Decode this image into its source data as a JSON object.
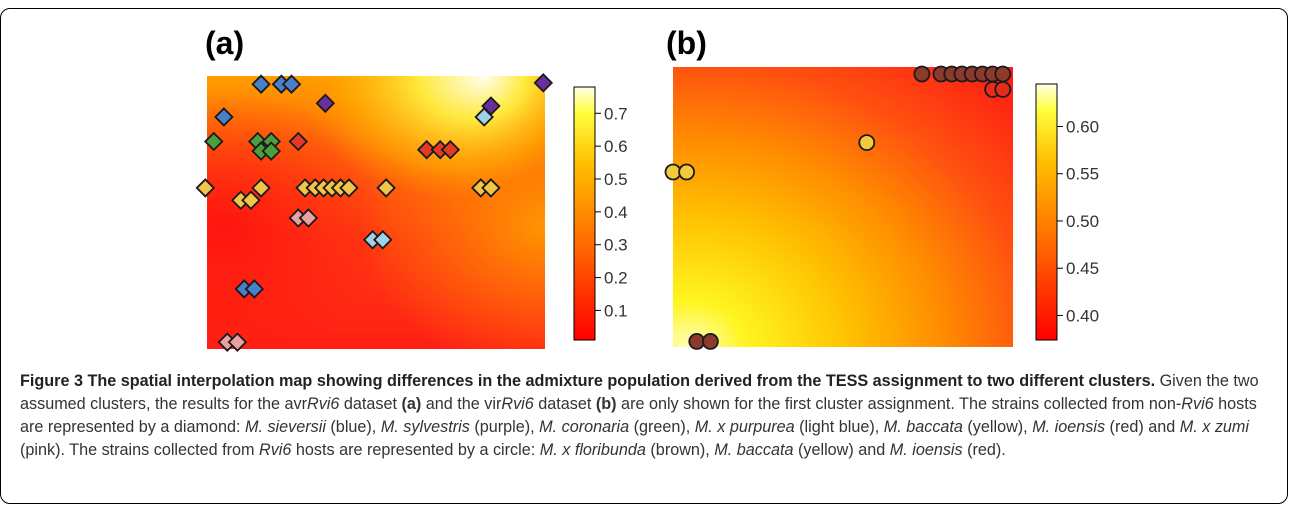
{
  "figure": {
    "panels": [
      {
        "label": "(a)",
        "colorbar": {
          "ticks": [
            "0.7",
            "0.6",
            "0.5",
            "0.4",
            "0.3",
            "0.2",
            "0.1"
          ],
          "min": 0.01,
          "max": 0.78
        },
        "markers": [
          {
            "shape": "diamond",
            "color": "#4a7fc9",
            "x": 0.16,
            "y": 0.03
          },
          {
            "shape": "diamond",
            "color": "#4a7fc9",
            "x": 0.22,
            "y": 0.03
          },
          {
            "shape": "diamond",
            "color": "#4a7fc9",
            "x": 0.25,
            "y": 0.03
          },
          {
            "shape": "diamond",
            "color": "#6a2f9c",
            "x": 0.995,
            "y": 0.025
          },
          {
            "shape": "diamond",
            "color": "#6a2f9c",
            "x": 0.35,
            "y": 0.1
          },
          {
            "shape": "diamond",
            "color": "#6a2f9c",
            "x": 0.84,
            "y": 0.11
          },
          {
            "shape": "diamond",
            "color": "#9ed2e8",
            "x": 0.82,
            "y": 0.15
          },
          {
            "shape": "diamond",
            "color": "#4a7fc9",
            "x": 0.05,
            "y": 0.15
          },
          {
            "shape": "diamond",
            "color": "#4aa03c",
            "x": 0.02,
            "y": 0.24
          },
          {
            "shape": "diamond",
            "color": "#4aa03c",
            "x": 0.15,
            "y": 0.24
          },
          {
            "shape": "diamond",
            "color": "#4aa03c",
            "x": 0.19,
            "y": 0.24
          },
          {
            "shape": "diamond",
            "color": "#4aa03c",
            "x": 0.16,
            "y": 0.275
          },
          {
            "shape": "diamond",
            "color": "#4aa03c",
            "x": 0.19,
            "y": 0.275
          },
          {
            "shape": "diamond",
            "color": "#e23a24",
            "x": 0.27,
            "y": 0.24
          },
          {
            "shape": "diamond",
            "color": "#e23a24",
            "x": 0.65,
            "y": 0.27
          },
          {
            "shape": "diamond",
            "color": "#e23a24",
            "x": 0.69,
            "y": 0.27
          },
          {
            "shape": "diamond",
            "color": "#e23a24",
            "x": 0.72,
            "y": 0.27
          },
          {
            "shape": "diamond",
            "color": "#f2c447",
            "x": -0.005,
            "y": 0.41
          },
          {
            "shape": "diamond",
            "color": "#f2c447",
            "x": 0.16,
            "y": 0.41
          },
          {
            "shape": "diamond",
            "color": "#f2c447",
            "x": 0.29,
            "y": 0.41
          },
          {
            "shape": "diamond",
            "color": "#f2c447",
            "x": 0.32,
            "y": 0.41
          },
          {
            "shape": "diamond",
            "color": "#f2c447",
            "x": 0.345,
            "y": 0.41
          },
          {
            "shape": "diamond",
            "color": "#f2c447",
            "x": 0.37,
            "y": 0.41
          },
          {
            "shape": "diamond",
            "color": "#f2c447",
            "x": 0.395,
            "y": 0.41
          },
          {
            "shape": "diamond",
            "color": "#f2c447",
            "x": 0.42,
            "y": 0.41
          },
          {
            "shape": "diamond",
            "color": "#f2c447",
            "x": 0.53,
            "y": 0.41
          },
          {
            "shape": "diamond",
            "color": "#f2c447",
            "x": 0.81,
            "y": 0.41
          },
          {
            "shape": "diamond",
            "color": "#f2c447",
            "x": 0.84,
            "y": 0.41
          },
          {
            "shape": "diamond",
            "color": "#f2c447",
            "x": 0.1,
            "y": 0.455
          },
          {
            "shape": "diamond",
            "color": "#f2c447",
            "x": 0.13,
            "y": 0.455
          },
          {
            "shape": "diamond",
            "color": "#e8a0a0",
            "x": 0.27,
            "y": 0.52
          },
          {
            "shape": "diamond",
            "color": "#e8a0a0",
            "x": 0.3,
            "y": 0.52
          },
          {
            "shape": "diamond",
            "color": "#9ed2e8",
            "x": 0.49,
            "y": 0.6
          },
          {
            "shape": "diamond",
            "color": "#9ed2e8",
            "x": 0.52,
            "y": 0.6
          },
          {
            "shape": "diamond",
            "color": "#4a7fc9",
            "x": 0.11,
            "y": 0.78
          },
          {
            "shape": "diamond",
            "color": "#4a7fc9",
            "x": 0.14,
            "y": 0.78
          },
          {
            "shape": "diamond",
            "color": "#e8a0a0",
            "x": 0.06,
            "y": 0.975
          },
          {
            "shape": "diamond",
            "color": "#e8a0a0",
            "x": 0.09,
            "y": 0.975
          }
        ]
      },
      {
        "label": "(b)",
        "colorbar": {
          "ticks": [
            "0.60",
            "0.55",
            "0.50",
            "0.45",
            "0.40"
          ],
          "min": 0.374,
          "max": 0.645
        },
        "markers": [
          {
            "shape": "circle",
            "color": "#8c3a2c",
            "x": 0.732,
            "y": 0.025
          },
          {
            "shape": "circle",
            "color": "#8c3a2c",
            "x": 0.788,
            "y": 0.025
          },
          {
            "shape": "circle",
            "color": "#8c3a2c",
            "x": 0.82,
            "y": 0.025
          },
          {
            "shape": "circle",
            "color": "#8c3a2c",
            "x": 0.85,
            "y": 0.025
          },
          {
            "shape": "circle",
            "color": "#8c3a2c",
            "x": 0.88,
            "y": 0.025
          },
          {
            "shape": "circle",
            "color": "#8c3a2c",
            "x": 0.91,
            "y": 0.025
          },
          {
            "shape": "circle",
            "color": "#8c3a2c",
            "x": 0.94,
            "y": 0.025
          },
          {
            "shape": "circle",
            "color": "#8c3a2c",
            "x": 0.97,
            "y": 0.025
          },
          {
            "shape": "circle",
            "color": "#e82a1c",
            "x": 0.94,
            "y": 0.08
          },
          {
            "shape": "circle",
            "color": "#e82a1c",
            "x": 0.97,
            "y": 0.08
          },
          {
            "shape": "circle",
            "color": "#f5c93c",
            "x": 0.57,
            "y": 0.27
          },
          {
            "shape": "circle",
            "color": "#f5c93c",
            "x": 0.0,
            "y": 0.375
          },
          {
            "shape": "circle",
            "color": "#f5c93c",
            "x": 0.04,
            "y": 0.375
          },
          {
            "shape": "circle",
            "color": "#8c3a2c",
            "x": 0.07,
            "y": 0.98
          },
          {
            "shape": "circle",
            "color": "#8c3a2c",
            "x": 0.11,
            "y": 0.98
          }
        ]
      }
    ]
  },
  "caption": {
    "title": "Figure 3 The spatial interpolation map showing differences in the admixture population derived from the TESS assignment to two different clusters.",
    "s1": "Given the two assumed clusters, the results for the avr",
    "s1i": "Rvi6",
    "s2": " dataset ",
    "s2b": "(a)",
    "s3": " and the vir",
    "s3i": "Rvi6",
    "s4": " dataset ",
    "s4b": "(b)",
    "s5": " are only shown for the first cluster assignment. The strains collected from non-",
    "s5i": "Rvi6",
    "s6": " hosts are represented by a diamond: ",
    "sp1": "M. sieversii",
    "c1": " (blue), ",
    "sp2": "M. sylvestris",
    "c2": " (purple), ",
    "sp3": "M. coronaria",
    "c3": " (green), ",
    "sp4": "M. x purpurea",
    "c4": " (light blue), ",
    "sp5": "M. baccata",
    "c5": " (yellow), ",
    "sp6": "M. ioensis",
    "c6": " (red) and ",
    "sp7": "M. x zumi",
    "c7": " (pink). The strains collected from ",
    "s7i": "Rvi6",
    "s8": " hosts are represented by a circle: ",
    "sp8": "M. x floribunda",
    "c8": " (brown), ",
    "sp9": "M. baccata",
    "c9": " (yellow) and ",
    "sp10": "M. ioensis",
    "c10": " (red)."
  },
  "colors": {
    "heat_red": "#ff1a1a",
    "heat_orange": "#ff8c00",
    "heat_yellow": "#ffea00",
    "heat_white": "#fffff0",
    "frame": "#000000"
  }
}
